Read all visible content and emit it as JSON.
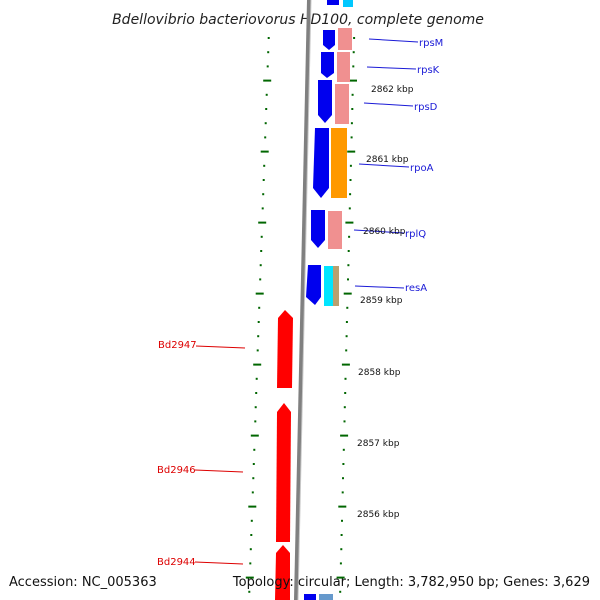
{
  "title": "Bdellovibrio bacteriovorus HD100, complete genome",
  "footer": {
    "accession": "Accession: NC_005363",
    "topology": "Topology: circular; Length: 3,782,950 bp; Genes: 3,629"
  },
  "tick_labels": [
    "2862 kbp",
    "2861 kbp",
    "2860 kbp",
    "2859 kbp",
    "2858 kbp",
    "2857 kbp",
    "2856 kbp"
  ],
  "gene_labels_top": [
    "rpsM",
    "rpsK",
    "rpsD",
    "rpoA",
    "rplQ",
    "resA"
  ],
  "gene_labels_bottom": [
    "Bd2947",
    "Bd2946",
    "Bd2944"
  ],
  "colors": {
    "backbone": "#808080",
    "forward_blue": "#0000ee",
    "light_red": "#f09090",
    "orange": "#ff9900",
    "cyan": "#00e5ff",
    "tan": "#b8a070",
    "reverse_red": "#ff0000",
    "tick_green": "#006600",
    "label_blue": "#1a1ad6",
    "label_red": "#dd0000"
  }
}
